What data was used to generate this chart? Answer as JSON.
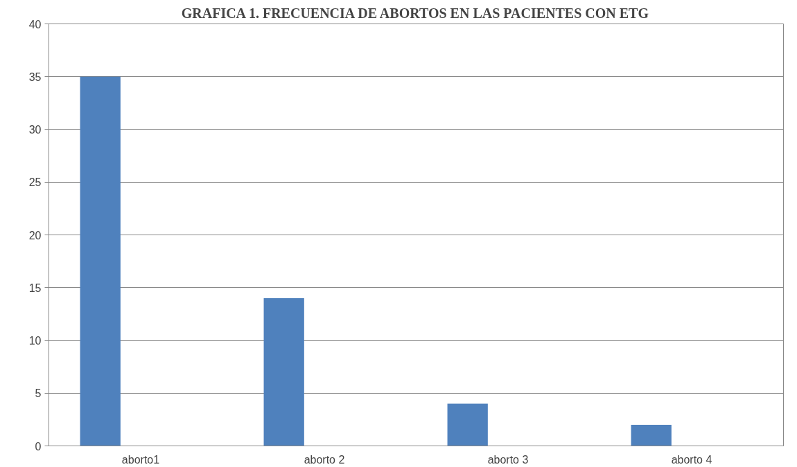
{
  "chart_data": {
    "type": "bar",
    "title": "GRAFICA 1. FRECUENCIA DE ABORTOS EN LAS PACIENTES CON ETG",
    "categories": [
      "aborto1",
      "aborto 2",
      "aborto 3",
      "aborto 4"
    ],
    "values": [
      35,
      14,
      4,
      2
    ],
    "color": "#4f81bd",
    "ylim": [
      0,
      40
    ],
    "yticks": [
      0,
      5,
      10,
      15,
      20,
      25,
      30,
      35,
      40
    ],
    "grid": "y"
  }
}
